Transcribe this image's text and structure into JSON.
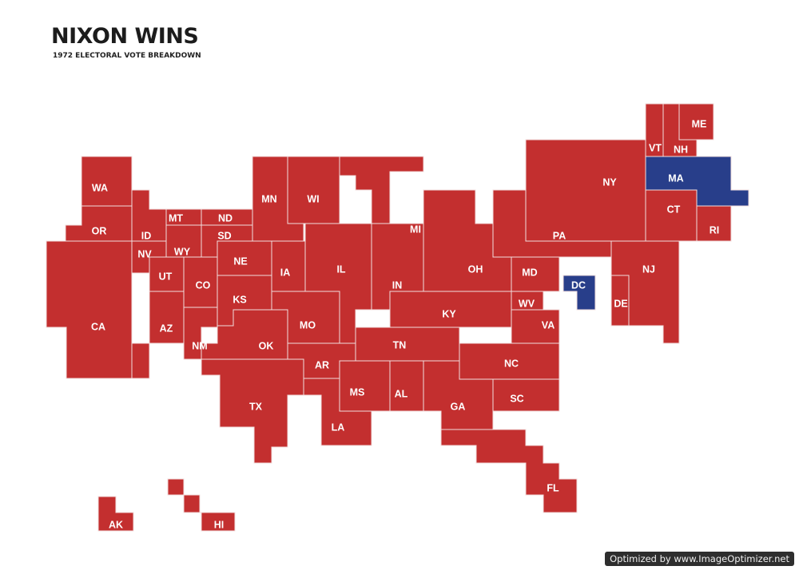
{
  "title": "NIXON WINS",
  "subtitle": "1972 ELECTORAL VOTE BREAKDOWN",
  "watermark": "Optimized by www.ImageOptimizer.net",
  "colors": {
    "nixon": "#c32f2f",
    "mcgovern": "#283e8a",
    "border": "#f2dede"
  },
  "states": [
    {
      "abbr": "WA",
      "winner": "nixon"
    },
    {
      "abbr": "OR",
      "winner": "nixon"
    },
    {
      "abbr": "CA",
      "winner": "nixon"
    },
    {
      "abbr": "ID",
      "winner": "nixon"
    },
    {
      "abbr": "NV",
      "winner": "nixon"
    },
    {
      "abbr": "MT",
      "winner": "nixon"
    },
    {
      "abbr": "WY",
      "winner": "nixon"
    },
    {
      "abbr": "UT",
      "winner": "nixon"
    },
    {
      "abbr": "AZ",
      "winner": "nixon"
    },
    {
      "abbr": "CO",
      "winner": "nixon"
    },
    {
      "abbr": "NM",
      "winner": "nixon"
    },
    {
      "abbr": "ND",
      "winner": "nixon"
    },
    {
      "abbr": "SD",
      "winner": "nixon"
    },
    {
      "abbr": "NE",
      "winner": "nixon"
    },
    {
      "abbr": "KS",
      "winner": "nixon"
    },
    {
      "abbr": "OK",
      "winner": "nixon"
    },
    {
      "abbr": "TX",
      "winner": "nixon"
    },
    {
      "abbr": "MN",
      "winner": "nixon"
    },
    {
      "abbr": "IA",
      "winner": "nixon"
    },
    {
      "abbr": "MO",
      "winner": "nixon"
    },
    {
      "abbr": "AR",
      "winner": "nixon"
    },
    {
      "abbr": "LA",
      "winner": "nixon"
    },
    {
      "abbr": "WI",
      "winner": "nixon"
    },
    {
      "abbr": "IL",
      "winner": "nixon"
    },
    {
      "abbr": "MI",
      "winner": "nixon"
    },
    {
      "abbr": "IN",
      "winner": "nixon"
    },
    {
      "abbr": "OH",
      "winner": "nixon"
    },
    {
      "abbr": "KY",
      "winner": "nixon"
    },
    {
      "abbr": "TN",
      "winner": "nixon"
    },
    {
      "abbr": "MS",
      "winner": "nixon"
    },
    {
      "abbr": "AL",
      "winner": "nixon"
    },
    {
      "abbr": "GA",
      "winner": "nixon"
    },
    {
      "abbr": "FL",
      "winner": "nixon"
    },
    {
      "abbr": "SC",
      "winner": "nixon"
    },
    {
      "abbr": "NC",
      "winner": "nixon"
    },
    {
      "abbr": "VA",
      "winner": "nixon"
    },
    {
      "abbr": "WV",
      "winner": "nixon"
    },
    {
      "abbr": "MD",
      "winner": "nixon"
    },
    {
      "abbr": "DC",
      "winner": "mcgovern"
    },
    {
      "abbr": "DE",
      "winner": "nixon"
    },
    {
      "abbr": "PA",
      "winner": "nixon"
    },
    {
      "abbr": "NJ",
      "winner": "nixon"
    },
    {
      "abbr": "NY",
      "winner": "nixon"
    },
    {
      "abbr": "CT",
      "winner": "nixon"
    },
    {
      "abbr": "RI",
      "winner": "nixon"
    },
    {
      "abbr": "MA",
      "winner": "mcgovern"
    },
    {
      "abbr": "VT",
      "winner": "nixon"
    },
    {
      "abbr": "NH",
      "winner": "nixon"
    },
    {
      "abbr": "ME",
      "winner": "nixon"
    },
    {
      "abbr": "AK",
      "winner": "nixon"
    },
    {
      "abbr": "HI",
      "winner": "nixon"
    }
  ]
}
